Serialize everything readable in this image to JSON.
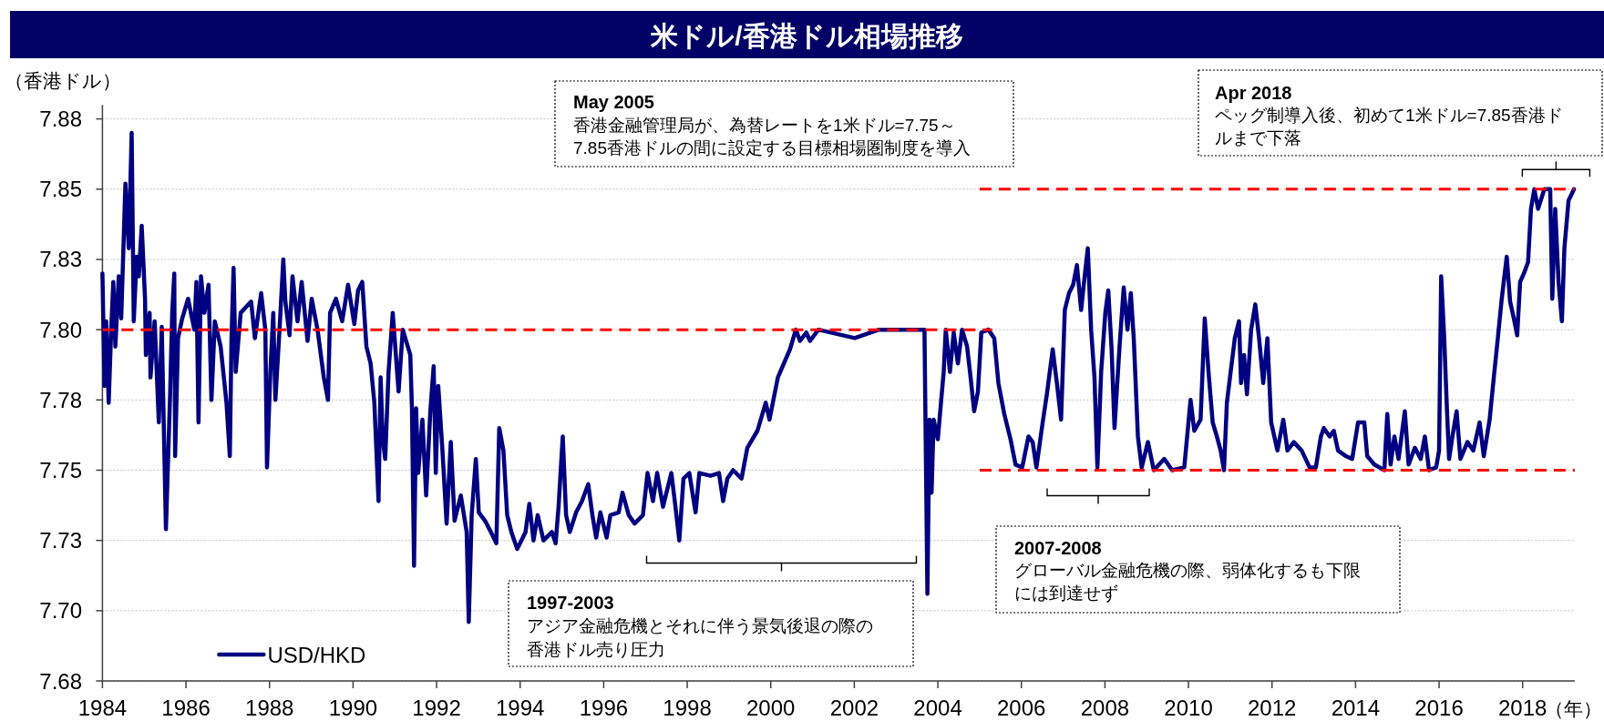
{
  "chart_data": {
    "type": "line",
    "title": "米ドル/香港ドル相場推移",
    "ylabel": "（香港ドル）",
    "xlabel": "（年）",
    "xlim": [
      1984,
      2019.25
    ],
    "xticks": [
      1984,
      1986,
      1988,
      1990,
      1992,
      1994,
      1996,
      1998,
      2000,
      2002,
      2004,
      2006,
      2008,
      2010,
      2012,
      2014,
      2016,
      2018
    ],
    "ylim": [
      7.675,
      7.88
    ],
    "yticks": [
      {
        "value": 7.675,
        "label": "7.68"
      },
      {
        "value": 7.7,
        "label": "7.70"
      },
      {
        "value": 7.725,
        "label": "7.73"
      },
      7.75,
      {
        "value": 7.775,
        "label": "7.78"
      },
      {
        "value": 7.8,
        "label": "7.80"
      },
      {
        "value": 7.825,
        "label": "7.83"
      },
      7.85,
      {
        "value": 7.875,
        "label": "7.88"
      }
    ],
    "grid": "y",
    "legend": "bottom left",
    "series": [
      {
        "name": "USD/HKD",
        "color": "#000080",
        "line_style": "solid",
        "x": [
          1984.0,
          1984.05,
          1984.09,
          1984.15,
          1984.21,
          1984.26,
          1984.31,
          1984.39,
          1984.45,
          1984.55,
          1984.63,
          1984.7,
          1984.75,
          1984.82,
          1984.87,
          1984.94,
          1985.02,
          1985.04,
          1985.13,
          1985.15,
          1985.25,
          1985.35,
          1985.42,
          1985.52,
          1985.62,
          1985.67,
          1985.72,
          1985.74,
          1985.81,
          1985.91,
          1986.05,
          1986.2,
          1986.25,
          1986.3,
          1986.36,
          1986.44,
          1986.54,
          1986.61,
          1986.69,
          1986.83,
          1986.97,
          1987.05,
          1987.09,
          1987.14,
          1987.19,
          1987.31,
          1987.56,
          1987.65,
          1987.8,
          1987.9,
          1987.94,
          1988.02,
          1988.09,
          1988.14,
          1988.24,
          1988.33,
          1988.38,
          1988.48,
          1988.55,
          1988.67,
          1988.77,
          1988.91,
          1989.01,
          1989.15,
          1989.3,
          1989.4,
          1989.45,
          1989.59,
          1989.74,
          1989.88,
          1990.03,
          1990.12,
          1990.22,
          1990.32,
          1990.42,
          1990.51,
          1990.61,
          1990.66,
          1990.71,
          1990.77,
          1990.85,
          1990.95,
          1991.09,
          1991.19,
          1991.37,
          1991.41,
          1991.46,
          1991.51,
          1991.56,
          1991.66,
          1991.75,
          1991.85,
          1991.93,
          1991.98,
          1992.04,
          1992.14,
          1992.24,
          1992.34,
          1992.43,
          1992.58,
          1992.72,
          1992.77,
          1992.84,
          1992.94,
          1993.01,
          1993.16,
          1993.3,
          1993.43,
          1993.5,
          1993.6,
          1993.69,
          1993.79,
          1993.93,
          1994.13,
          1994.22,
          1994.32,
          1994.42,
          1994.56,
          1994.76,
          1994.85,
          1994.92,
          1995.02,
          1995.1,
          1995.19,
          1995.34,
          1995.48,
          1995.63,
          1995.73,
          1995.82,
          1995.92,
          1996.07,
          1996.16,
          1996.36,
          1996.45,
          1996.6,
          1996.74,
          1996.94,
          1997.05,
          1997.18,
          1997.28,
          1997.42,
          1997.62,
          1997.71,
          1997.81,
          1997.91,
          1998.05,
          1998.2,
          1998.29,
          1998.56,
          1998.76,
          1998.86,
          1998.96,
          1999.1,
          1999.3,
          1999.44,
          1999.68,
          1999.88,
          1999.97,
          2000.17,
          2000.46,
          2000.6,
          2000.7,
          2000.85,
          2000.94,
          2001.14,
          2002.01,
          2002.59,
          2003.68,
          2003.75,
          2003.8,
          2003.85,
          2003.9,
          2004.0,
          2004.04,
          2004.14,
          2004.19,
          2004.29,
          2004.38,
          2004.48,
          2004.58,
          2004.7,
          2004.77,
          2004.87,
          2004.96,
          2005.04,
          2005.21,
          2005.35,
          2005.45,
          2005.59,
          2005.74,
          2005.86,
          2006.02,
          2006.17,
          2006.27,
          2006.36,
          2006.51,
          2006.61,
          2006.75,
          2006.85,
          2006.95,
          2007.04,
          2007.14,
          2007.24,
          2007.33,
          2007.43,
          2007.53,
          2007.59,
          2007.67,
          2007.75,
          2007.82,
          2007.91,
          2008.01,
          2008.08,
          2008.16,
          2008.23,
          2008.35,
          2008.45,
          2008.54,
          2008.62,
          2008.69,
          2008.79,
          2008.88,
          2009.03,
          2009.17,
          2009.42,
          2009.61,
          2009.9,
          2010.05,
          2010.14,
          2010.29,
          2010.39,
          2010.48,
          2010.58,
          2010.68,
          2010.77,
          2010.85,
          2010.92,
          2011.01,
          2011.11,
          2011.21,
          2011.26,
          2011.33,
          2011.4,
          2011.5,
          2011.6,
          2011.69,
          2011.79,
          2011.89,
          2011.98,
          2012.13,
          2012.27,
          2012.37,
          2012.52,
          2012.71,
          2012.9,
          2013.05,
          2013.17,
          2013.24,
          2013.38,
          2013.48,
          2013.58,
          2013.77,
          2013.92,
          2014.06,
          2014.21,
          2014.28,
          2014.45,
          2014.69,
          2014.76,
          2014.84,
          2014.93,
          2015.03,
          2015.18,
          2015.27,
          2015.42,
          2015.56,
          2015.66,
          2015.76,
          2015.93,
          2016.0,
          2016.05,
          2016.12,
          2016.19,
          2016.24,
          2016.32,
          2016.42,
          2016.51,
          2016.68,
          2016.82,
          2016.97,
          2017.07,
          2017.21,
          2017.31,
          2017.4,
          2017.5,
          2017.62,
          2017.7,
          2017.79,
          2017.87,
          2017.94,
          2018.03,
          2018.13,
          2018.2,
          2018.28,
          2018.37,
          2018.52,
          2018.66,
          2018.71,
          2018.78,
          2018.86,
          2018.94,
          2019.0,
          2019.1,
          2019.23
        ],
        "values": [
          7.82,
          7.78,
          7.803,
          7.774,
          7.8,
          7.817,
          7.794,
          7.819,
          7.804,
          7.852,
          7.829,
          7.87,
          7.803,
          7.826,
          7.819,
          7.837,
          7.811,
          7.791,
          7.806,
          7.783,
          7.803,
          7.767,
          7.801,
          7.729,
          7.777,
          7.806,
          7.82,
          7.755,
          7.797,
          7.804,
          7.811,
          7.8,
          7.817,
          7.767,
          7.819,
          7.806,
          7.816,
          7.775,
          7.803,
          7.794,
          7.774,
          7.755,
          7.797,
          7.822,
          7.785,
          7.806,
          7.81,
          7.797,
          7.813,
          7.8,
          7.751,
          7.785,
          7.806,
          7.775,
          7.8,
          7.825,
          7.81,
          7.798,
          7.819,
          7.803,
          7.817,
          7.796,
          7.811,
          7.8,
          7.783,
          7.775,
          7.806,
          7.811,
          7.803,
          7.816,
          7.802,
          7.814,
          7.817,
          7.794,
          7.788,
          7.774,
          7.739,
          7.783,
          7.761,
          7.754,
          7.785,
          7.806,
          7.778,
          7.8,
          7.791,
          7.772,
          7.716,
          7.772,
          7.749,
          7.768,
          7.741,
          7.771,
          7.787,
          7.749,
          7.78,
          7.757,
          7.731,
          7.76,
          7.732,
          7.741,
          7.728,
          7.696,
          7.734,
          7.754,
          7.735,
          7.732,
          7.728,
          7.724,
          7.765,
          7.757,
          7.734,
          7.728,
          7.722,
          7.728,
          7.738,
          7.725,
          7.734,
          7.725,
          7.728,
          7.724,
          7.737,
          7.762,
          7.734,
          7.728,
          7.735,
          7.739,
          7.745,
          7.734,
          7.726,
          7.735,
          7.726,
          7.734,
          7.735,
          7.742,
          7.734,
          7.731,
          7.734,
          7.749,
          7.739,
          7.749,
          7.737,
          7.749,
          7.738,
          7.725,
          7.747,
          7.749,
          7.735,
          7.749,
          7.748,
          7.749,
          7.739,
          7.747,
          7.75,
          7.747,
          7.758,
          7.764,
          7.774,
          7.768,
          7.783,
          7.793,
          7.8,
          7.796,
          7.799,
          7.796,
          7.8,
          7.797,
          7.8,
          7.8,
          7.706,
          7.768,
          7.742,
          7.768,
          7.761,
          7.768,
          7.785,
          7.8,
          7.785,
          7.799,
          7.788,
          7.8,
          7.794,
          7.785,
          7.771,
          7.778,
          7.799,
          7.8,
          7.797,
          7.781,
          7.77,
          7.761,
          7.752,
          7.751,
          7.762,
          7.76,
          7.751,
          7.767,
          7.777,
          7.793,
          7.781,
          7.768,
          7.807,
          7.813,
          7.816,
          7.823,
          7.807,
          7.821,
          7.829,
          7.8,
          7.783,
          7.751,
          7.785,
          7.806,
          7.814,
          7.793,
          7.765,
          7.794,
          7.815,
          7.8,
          7.813,
          7.797,
          7.762,
          7.751,
          7.76,
          7.75,
          7.754,
          7.75,
          7.751,
          7.775,
          7.764,
          7.768,
          7.804,
          7.785,
          7.767,
          7.762,
          7.757,
          7.75,
          7.774,
          7.785,
          7.797,
          7.803,
          7.781,
          7.791,
          7.777,
          7.8,
          7.809,
          7.797,
          7.781,
          7.797,
          7.767,
          7.757,
          7.768,
          7.757,
          7.76,
          7.757,
          7.751,
          7.751,
          7.762,
          7.765,
          7.762,
          7.764,
          7.757,
          7.755,
          7.754,
          7.767,
          7.767,
          7.755,
          7.752,
          7.75,
          7.77,
          7.752,
          7.762,
          7.754,
          7.771,
          7.752,
          7.758,
          7.754,
          7.762,
          7.75,
          7.751,
          7.757,
          7.819,
          7.798,
          7.771,
          7.754,
          7.762,
          7.771,
          7.754,
          7.76,
          7.757,
          7.767,
          7.755,
          7.768,
          7.783,
          7.796,
          7.811,
          7.826,
          7.81,
          7.804,
          7.798,
          7.817,
          7.82,
          7.824,
          7.843,
          7.85,
          7.843,
          7.85,
          7.85,
          7.811,
          7.843,
          7.817,
          7.803,
          7.829,
          7.846,
          7.85
        ]
      },
      {
        "type": "line",
        "color": "#ff0000",
        "line_style": "dashed",
        "x": [
          1984,
          2005.3
        ],
        "values": [
          7.8,
          7.8
        ]
      },
      {
        "type": "line",
        "color": "#ff0000",
        "line_style": "dashed",
        "x": [
          2005,
          2019.25
        ],
        "values": [
          7.85,
          7.85
        ]
      },
      {
        "type": "line",
        "color": "#ff0000",
        "line_style": "dashed",
        "x": [
          2005,
          2019.25
        ],
        "values": [
          7.75,
          7.75
        ]
      }
    ],
    "annotations": [
      "May 2005\n香港金融管理局が、為替レートを1米ドル=7.75～7.85香港ドルの間に設定する目標相場圏制度を導入",
      "1997-2003\nアジア金融危機とそれに伴う景気後退の際の香港ドル売り圧力",
      "2007-2008\nグローバル金融危機の際、弱体化するも下限には到達せず",
      "Apr 2018\nペッグ制導入後、初めて1米ドル=7.85香港ドルまで下落"
    ]
  }
}
